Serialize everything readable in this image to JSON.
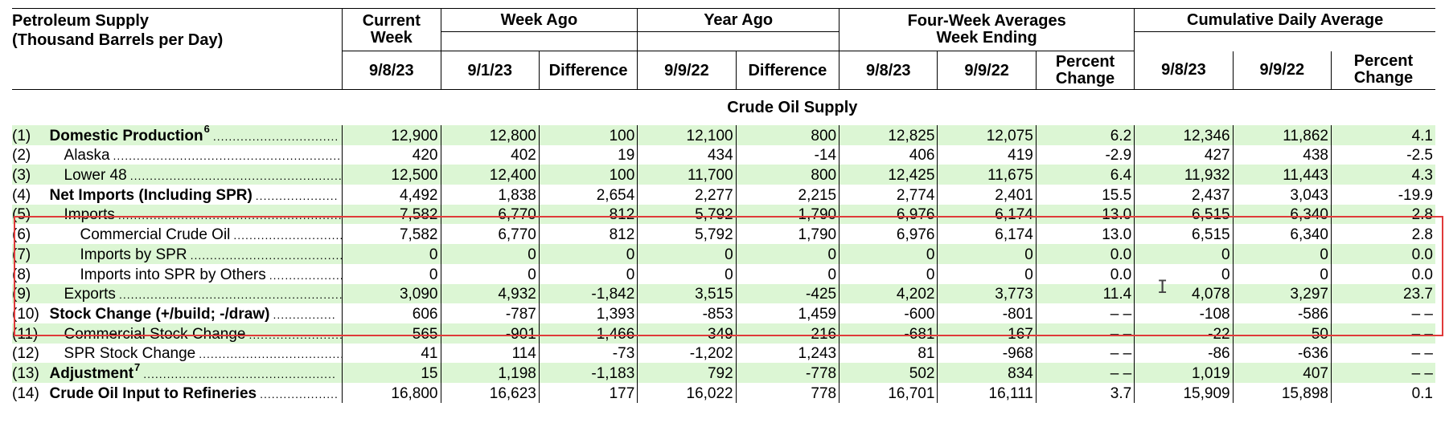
{
  "header": {
    "title_line1": "Petroleum Supply",
    "title_line2": "(Thousand Barrels per Day)",
    "current_week": "Current Week",
    "week_ago": "Week Ago",
    "year_ago": "Year Ago",
    "four_week_line1": "Four-Week Averages",
    "four_week_line2": "Week Ending",
    "cumulative": "Cumulative Daily Average",
    "sub": [
      "9/8/23",
      "9/1/23",
      "Difference",
      "9/9/22",
      "Difference",
      "9/8/23",
      "9/9/22",
      "Percent Change",
      "9/8/23",
      "9/9/22",
      "Percent Change"
    ]
  },
  "section_title": "Crude Oil Supply",
  "rows": [
    {
      "idx": "(1)",
      "label": "Domestic Production",
      "sup": "6",
      "bold": true,
      "indent": 0,
      "green": true,
      "values": [
        "12,900",
        "12,800",
        "100",
        "12,100",
        "800",
        "12,825",
        "12,075",
        "6.2",
        "12,346",
        "11,862",
        "4.1"
      ]
    },
    {
      "idx": "(2)",
      "label": "Alaska",
      "sup": "",
      "bold": false,
      "indent": 1,
      "green": false,
      "values": [
        "420",
        "402",
        "19",
        "434",
        "-14",
        "406",
        "419",
        "-2.9",
        "427",
        "438",
        "-2.5"
      ]
    },
    {
      "idx": "(3)",
      "label": "Lower 48",
      "sup": "",
      "bold": false,
      "indent": 1,
      "green": true,
      "values": [
        "12,500",
        "12,400",
        "100",
        "11,700",
        "800",
        "12,425",
        "11,675",
        "6.4",
        "11,932",
        "11,443",
        "4.3"
      ]
    },
    {
      "idx": "(4)",
      "label": "Net Imports (Including SPR)",
      "sup": "",
      "bold": true,
      "indent": 0,
      "green": false,
      "values": [
        "4,492",
        "1,838",
        "2,654",
        "2,277",
        "2,215",
        "2,774",
        "2,401",
        "15.5",
        "2,437",
        "3,043",
        "-19.9"
      ]
    },
    {
      "idx": "(5)",
      "label": "Imports",
      "sup": "",
      "bold": false,
      "indent": 1,
      "green": true,
      "values": [
        "7,582",
        "6,770",
        "812",
        "5,792",
        "1,790",
        "6,976",
        "6,174",
        "13.0",
        "6,515",
        "6,340",
        "2.8"
      ]
    },
    {
      "idx": "(6)",
      "label": "Commercial Crude Oil",
      "sup": "",
      "bold": false,
      "indent": 2,
      "green": false,
      "values": [
        "7,582",
        "6,770",
        "812",
        "5,792",
        "1,790",
        "6,976",
        "6,174",
        "13.0",
        "6,515",
        "6,340",
        "2.8"
      ]
    },
    {
      "idx": "(7)",
      "label": "Imports by SPR",
      "sup": "",
      "bold": false,
      "indent": 2,
      "green": true,
      "values": [
        "0",
        "0",
        "0",
        "0",
        "0",
        "0",
        "0",
        "0.0",
        "0",
        "0",
        "0.0"
      ]
    },
    {
      "idx": "(8)",
      "label": "Imports into SPR by Others",
      "sup": "",
      "bold": false,
      "indent": 2,
      "green": false,
      "values": [
        "0",
        "0",
        "0",
        "0",
        "0",
        "0",
        "0",
        "0.0",
        "0",
        "0",
        "0.0"
      ]
    },
    {
      "idx": "(9)",
      "label": "Exports",
      "sup": "",
      "bold": false,
      "indent": 1,
      "green": true,
      "values": [
        "3,090",
        "4,932",
        "-1,842",
        "3,515",
        "-425",
        "4,202",
        "3,773",
        "11.4",
        "4,078",
        "3,297",
        "23.7"
      ]
    },
    {
      "idx": "(10)",
      "label": "Stock Change (+/build; -/draw)",
      "sup": "",
      "bold": true,
      "indent": 0,
      "green": false,
      "values": [
        "606",
        "-787",
        "1,393",
        "-853",
        "1,459",
        "-600",
        "-801",
        "– –",
        "-108",
        "-586",
        "– –"
      ]
    },
    {
      "idx": "(11)",
      "label": "Commercial Stock Change",
      "sup": "",
      "bold": false,
      "indent": 1,
      "green": true,
      "values": [
        "565",
        "-901",
        "1,466",
        "349",
        "216",
        "-681",
        "167",
        "– –",
        "-22",
        "50",
        "– –"
      ]
    },
    {
      "idx": "(12)",
      "label": "SPR Stock Change",
      "sup": "",
      "bold": false,
      "indent": 1,
      "green": false,
      "values": [
        "41",
        "114",
        "-73",
        "-1,202",
        "1,243",
        "81",
        "-968",
        "– –",
        "-86",
        "-636",
        "– –"
      ]
    },
    {
      "idx": "(13)",
      "label": "Adjustment",
      "sup": "7",
      "bold": true,
      "indent": 0,
      "green": true,
      "values": [
        "15",
        "1,198",
        "-1,183",
        "792",
        "-778",
        "502",
        "834",
        "– –",
        "1,019",
        "407",
        "– –"
      ]
    },
    {
      "idx": "(14)",
      "label": "Crude Oil Input to Refineries",
      "sup": "",
      "bold": true,
      "indent": 0,
      "green": false,
      "values": [
        "16,800",
        "16,623",
        "177",
        "16,022",
        "778",
        "16,701",
        "16,111",
        "3.7",
        "15,909",
        "15,898",
        "0.1"
      ]
    }
  ],
  "colors": {
    "row_highlight": "#dcf6d4",
    "selection_box": "#e03a3a"
  },
  "cursor_icon": "text-cursor-icon"
}
